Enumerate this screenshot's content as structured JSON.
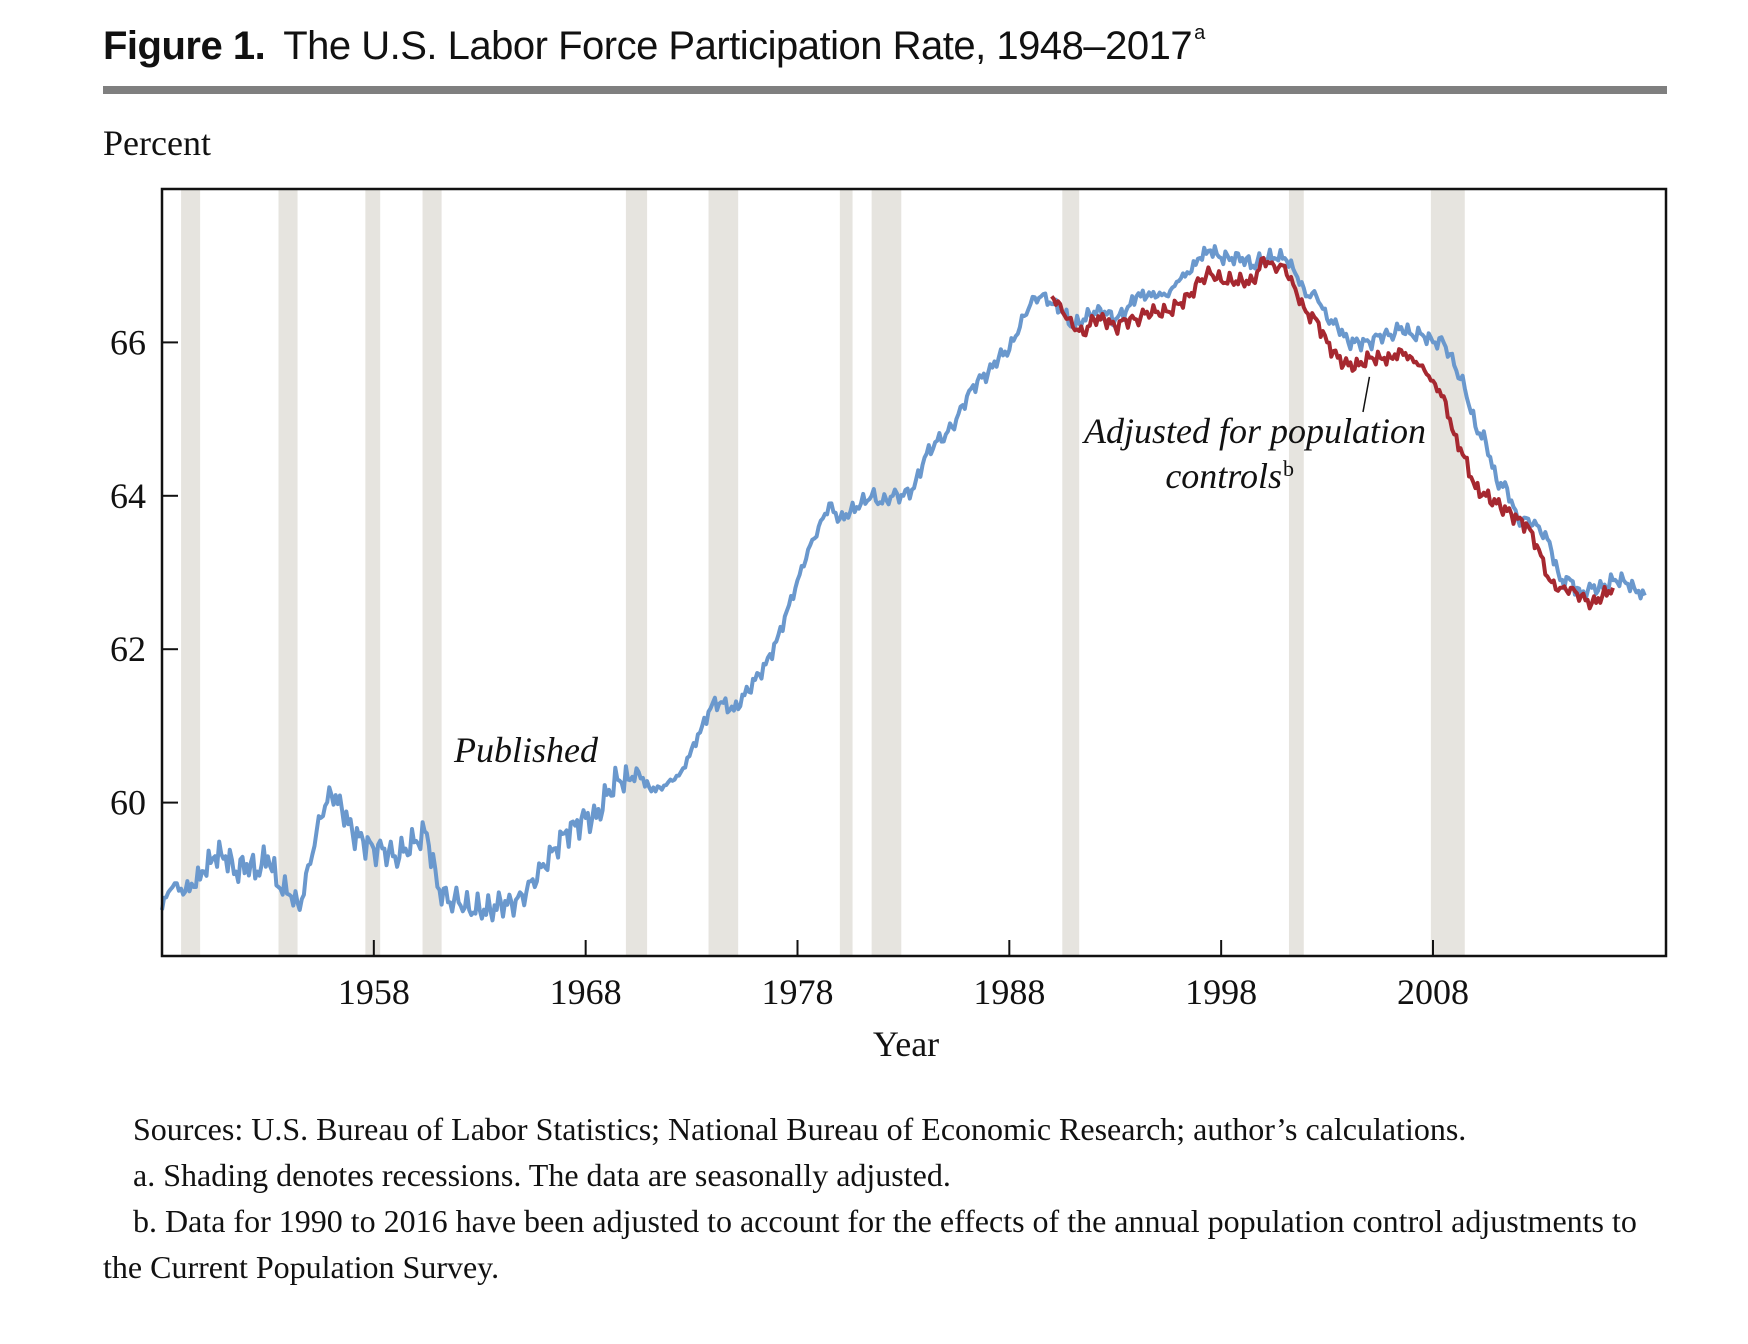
{
  "figure": {
    "label": "Figure 1.",
    "title": "The U.S. Labor Force Participation Rate, 1948–2017",
    "title_note": "a"
  },
  "colors": {
    "published": "#6a98cd",
    "adjusted": "#a62830",
    "recession": "#e6e4df",
    "rule": "#7f7f7f"
  },
  "chart_data": {
    "type": "line",
    "ylabel": "Percent",
    "xlabel": "Year",
    "xlim": [
      1948,
      2019
    ],
    "ylim": [
      58,
      68
    ],
    "x_ticks": [
      1958,
      1968,
      1978,
      1988,
      1998,
      2008
    ],
    "y_ticks": [
      60,
      62,
      64,
      66
    ],
    "recessions": [
      [
        1948.9,
        1949.8
      ],
      [
        1953.5,
        1954.4
      ],
      [
        1957.6,
        1958.3
      ],
      [
        1960.3,
        1961.2
      ],
      [
        1969.9,
        1970.9
      ],
      [
        1973.8,
        1975.2
      ],
      [
        1980.0,
        1980.6
      ],
      [
        1981.5,
        1982.9
      ],
      [
        1990.5,
        1991.3
      ],
      [
        2001.2,
        2001.9
      ],
      [
        2007.9,
        2009.5
      ]
    ],
    "annotations": [
      {
        "text": "Published",
        "series": "published"
      },
      {
        "text": "Adjusted for population controls",
        "superscript": "b",
        "series": "adjusted"
      }
    ],
    "series": [
      {
        "name": "Published",
        "key": "published",
        "x": [
          1948.0,
          1948.5,
          1949.0,
          1949.5,
          1950.0,
          1950.5,
          1951.0,
          1951.5,
          1952.0,
          1952.5,
          1953.0,
          1953.5,
          1954.0,
          1954.5,
          1955.0,
          1955.5,
          1956.0,
          1956.5,
          1957.0,
          1957.5,
          1958.0,
          1958.5,
          1959.0,
          1959.5,
          1960.0,
          1960.5,
          1961.0,
          1961.5,
          1962.0,
          1962.5,
          1963.0,
          1963.5,
          1964.0,
          1964.5,
          1965.0,
          1965.5,
          1966.0,
          1966.5,
          1967.0,
          1967.5,
          1968.0,
          1968.5,
          1969.0,
          1969.5,
          1970.0,
          1970.5,
          1971.0,
          1971.5,
          1972.0,
          1972.5,
          1973.0,
          1973.5,
          1974.0,
          1974.5,
          1975.0,
          1975.5,
          1976.0,
          1976.5,
          1977.0,
          1977.5,
          1978.0,
          1978.5,
          1979.0,
          1979.5,
          1980.0,
          1980.5,
          1981.0,
          1981.5,
          1982.0,
          1982.5,
          1983.0,
          1983.5,
          1984.0,
          1984.5,
          1985.0,
          1985.5,
          1986.0,
          1986.5,
          1987.0,
          1987.5,
          1988.0,
          1988.5,
          1989.0,
          1989.5,
          1990.0,
          1990.5,
          1991.0,
          1991.5,
          1992.0,
          1992.5,
          1993.0,
          1993.5,
          1994.0,
          1994.5,
          1995.0,
          1995.5,
          1996.0,
          1996.5,
          1997.0,
          1997.5,
          1998.0,
          1998.5,
          1999.0,
          1999.5,
          2000.0,
          2000.5,
          2001.0,
          2001.5,
          2002.0,
          2002.5,
          2003.0,
          2003.5,
          2004.0,
          2004.5,
          2005.0,
          2005.5,
          2006.0,
          2006.5,
          2007.0,
          2007.5,
          2008.0,
          2008.5,
          2009.0,
          2009.5,
          2010.0,
          2010.5,
          2011.0,
          2011.5,
          2012.0,
          2012.5,
          2013.0,
          2013.5,
          2014.0,
          2014.5,
          2015.0,
          2015.5,
          2016.0,
          2016.5,
          2017.0,
          2017.5,
          2018.0
        ],
        "values": [
          58.6,
          58.9,
          58.8,
          58.9,
          59.1,
          59.3,
          59.3,
          59.1,
          59.2,
          59.1,
          59.3,
          58.9,
          58.8,
          58.6,
          59.2,
          59.8,
          60.1,
          59.9,
          59.6,
          59.5,
          59.4,
          59.4,
          59.3,
          59.4,
          59.5,
          59.6,
          58.9,
          58.7,
          58.7,
          58.6,
          58.6,
          58.6,
          58.7,
          58.7,
          58.8,
          59.0,
          59.2,
          59.4,
          59.6,
          59.7,
          59.8,
          59.8,
          60.1,
          60.3,
          60.3,
          60.4,
          60.2,
          60.2,
          60.3,
          60.4,
          60.7,
          61.0,
          61.3,
          61.3,
          61.2,
          61.4,
          61.6,
          61.8,
          62.1,
          62.5,
          62.9,
          63.3,
          63.6,
          63.9,
          63.7,
          63.8,
          63.9,
          64.0,
          63.9,
          64.0,
          64.0,
          64.1,
          64.5,
          64.7,
          64.8,
          65.0,
          65.3,
          65.5,
          65.6,
          65.8,
          65.9,
          66.2,
          66.5,
          66.6,
          66.5,
          66.4,
          66.2,
          66.3,
          66.4,
          66.4,
          66.3,
          66.4,
          66.6,
          66.6,
          66.6,
          66.6,
          66.8,
          66.9,
          67.1,
          67.2,
          67.1,
          67.1,
          67.1,
          67.0,
          67.1,
          67.1,
          67.1,
          66.9,
          66.6,
          66.6,
          66.3,
          66.2,
          66.0,
          66.0,
          66.0,
          66.1,
          66.1,
          66.2,
          66.1,
          66.1,
          66.0,
          66.0,
          65.7,
          65.4,
          64.9,
          64.7,
          64.2,
          64.1,
          63.7,
          63.7,
          63.6,
          63.4,
          62.9,
          62.9,
          62.7,
          62.8,
          62.8,
          62.9,
          62.9,
          62.8,
          62.7
        ]
      },
      {
        "name": "Adjusted for population controls",
        "key": "adjusted",
        "x": [
          1990.0,
          1990.5,
          1991.0,
          1991.5,
          1992.0,
          1992.5,
          1993.0,
          1993.5,
          1994.0,
          1994.5,
          1995.0,
          1995.5,
          1996.0,
          1996.5,
          1997.0,
          1997.5,
          1998.0,
          1998.5,
          1999.0,
          1999.5,
          2000.0,
          2000.5,
          2001.0,
          2001.5,
          2002.0,
          2002.5,
          2003.0,
          2003.5,
          2004.0,
          2004.5,
          2005.0,
          2005.5,
          2006.0,
          2006.5,
          2007.0,
          2007.5,
          2008.0,
          2008.5,
          2009.0,
          2009.5,
          2010.0,
          2010.5,
          2011.0,
          2011.5,
          2012.0,
          2012.5,
          2013.0,
          2013.5,
          2014.0,
          2014.5,
          2015.0,
          2015.5,
          2016.0,
          2016.5
        ],
        "values": [
          66.6,
          66.4,
          66.2,
          66.1,
          66.3,
          66.3,
          66.2,
          66.3,
          66.3,
          66.4,
          66.4,
          66.4,
          66.5,
          66.6,
          66.8,
          66.9,
          66.8,
          66.8,
          66.8,
          66.8,
          67.1,
          67.0,
          67.0,
          66.7,
          66.4,
          66.3,
          66.0,
          65.8,
          65.7,
          65.7,
          65.8,
          65.8,
          65.8,
          65.9,
          65.8,
          65.7,
          65.5,
          65.3,
          64.8,
          64.5,
          64.1,
          64.0,
          63.9,
          63.8,
          63.7,
          63.6,
          63.3,
          62.9,
          62.8,
          62.8,
          62.7,
          62.6,
          62.7,
          62.8
        ]
      }
    ]
  },
  "notes": {
    "sources": "Sources: U.S. Bureau of Labor Statistics; National Bureau of Economic Research; author’s calculations.",
    "note_a": "a. Shading denotes recessions. The data are seasonally adjusted.",
    "note_b": "b. Data for 1990 to 2016 have been adjusted to account for the effects of the annual population control adjustments to the Current Population Survey."
  }
}
